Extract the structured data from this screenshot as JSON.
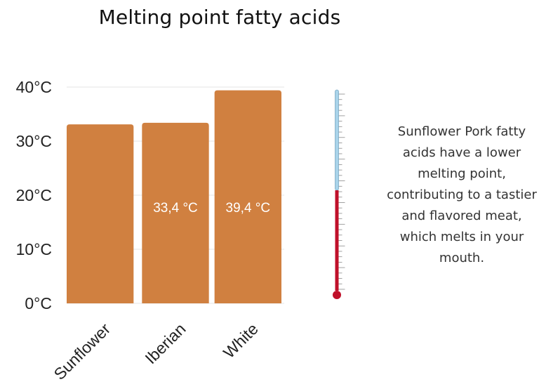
{
  "chart_data": {
    "type": "bar",
    "title": "Melting point fatty acids",
    "categories": [
      "Sunflower",
      "Iberian",
      "White"
    ],
    "values": [
      33.1,
      33.4,
      39.4
    ],
    "value_labels": [
      "",
      "33,4 °C",
      "39,4 °C"
    ],
    "ylim": [
      0,
      40
    ],
    "y_ticks": [
      "0°C",
      "10°C",
      "20°C",
      "30°C",
      "40°C"
    ],
    "grid": true,
    "bar_color": "#d08040"
  },
  "thermometer": {
    "level": 0.5,
    "tube_color": "#a9d3ea",
    "fluid_color": "#c0102a"
  },
  "note": "Sunflower Pork fatty acids have a lower melting point, contributing to a tastier and flavored meat,\nwhich melts in your mouth."
}
